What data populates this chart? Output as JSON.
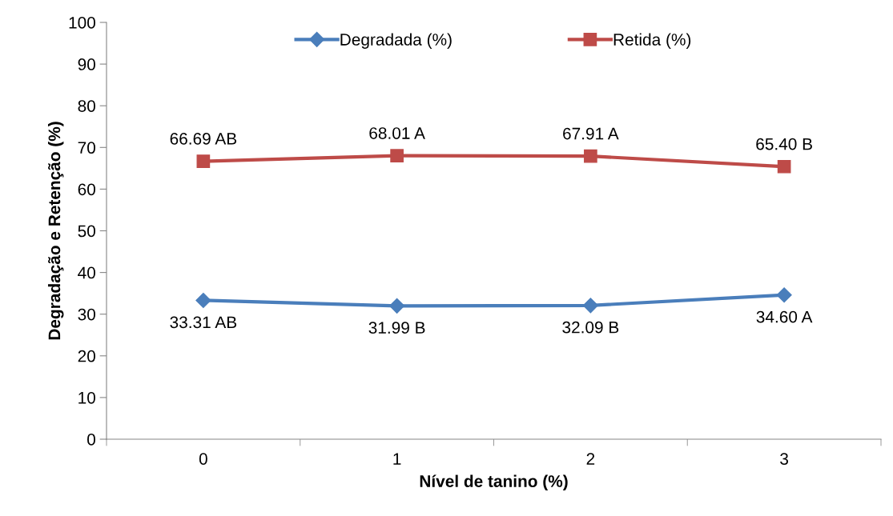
{
  "chart_data": {
    "type": "line",
    "xlabel": "Nível de tanino (%)",
    "ylabel": "Degradação e Retenção (%)",
    "categories": [
      "0",
      "1",
      "2",
      "3"
    ],
    "series": [
      {
        "name": "Degradada (%)",
        "color": "#4a7ebb",
        "marker": "diamond",
        "values": [
          33.31,
          31.99,
          32.09,
          34.6
        ],
        "value_labels": [
          "33.31 AB",
          "31.99 B",
          "32.09 B",
          "34.60 A"
        ]
      },
      {
        "name": "Retida (%)",
        "color": "#be4b48",
        "marker": "square",
        "values": [
          66.69,
          68.01,
          67.91,
          65.4
        ],
        "value_labels": [
          "66.69 AB",
          "68.01 A",
          "67.91 A",
          "65.40 B"
        ]
      }
    ],
    "ylim": [
      0,
      100
    ],
    "yticks": [
      0,
      10,
      20,
      30,
      40,
      50,
      60,
      70,
      80,
      90,
      100
    ],
    "grid": false,
    "legend": "top",
    "line_style": "solid"
  }
}
